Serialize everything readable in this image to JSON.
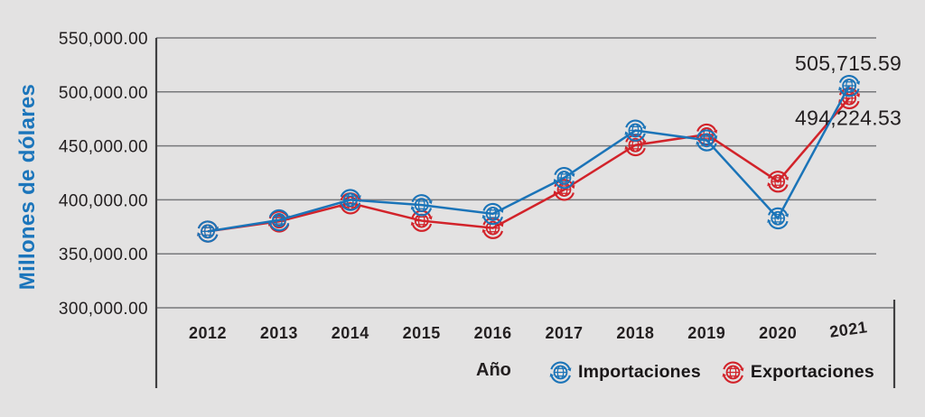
{
  "chart_data": {
    "type": "line",
    "title": "",
    "xlabel": "Año",
    "ylabel": "Millones de dólares",
    "x": [
      "2012",
      "2013",
      "2014",
      "2015",
      "2016",
      "2017",
      "2018",
      "2019",
      "2020",
      "2021"
    ],
    "y_ticks": [
      {
        "value": 550000,
        "label": "550,000.00"
      },
      {
        "value": 500000,
        "label": "500,000.00"
      },
      {
        "value": 450000,
        "label": "450,000.00"
      },
      {
        "value": 400000,
        "label": "400,000.00"
      },
      {
        "value": 350000,
        "label": "350,000.00"
      },
      {
        "value": 300000,
        "label": "300,000.00"
      }
    ],
    "ylim": [
      300000,
      550000
    ],
    "grid": true,
    "legend_position": "bottom",
    "marker": "globe-with-circular-arrows-icon",
    "series": [
      {
        "name": "Importaciones",
        "color": "#1b74b8",
        "values": [
          370752,
          381210,
          399977,
          395232,
          387064,
          420369,
          464277,
          455242,
          382986,
          505715.59
        ]
      },
      {
        "name": "Exportaciones",
        "color": "#d2232a",
        "values": [
          370770,
          380015,
          396912,
          380623,
          373939,
          409433,
          450713,
          460604,
          416999,
          494224.53
        ]
      }
    ],
    "annotations": [
      {
        "series": "Importaciones",
        "x": "2021",
        "label": "505,715.59",
        "placement": "above"
      },
      {
        "series": "Exportaciones",
        "x": "2021",
        "label": "494,224.53",
        "placement": "below"
      }
    ]
  },
  "colors": {
    "background": "#e3e2e2",
    "grid": "#77787b",
    "axis": "#414042",
    "text": "#231f20",
    "y_axis_title": "#1b75bb",
    "importaciones": "#1b74b8",
    "exportaciones": "#d2232a"
  }
}
